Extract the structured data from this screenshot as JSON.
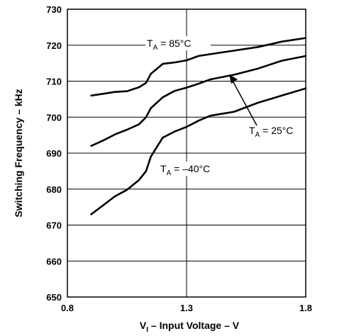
{
  "chart_data": {
    "type": "line",
    "xlabel": {
      "pre": "V",
      "sub": "I",
      "post": " – Input Voltage – V"
    },
    "ylabel": "Switching Frequency – kHz",
    "xlim": [
      0.8,
      1.8
    ],
    "ylim": [
      650,
      730
    ],
    "xticks": [
      "0.8",
      "1.3",
      "1.8"
    ],
    "xtick_values": [
      0.8,
      1.3,
      1.8
    ],
    "yticks": [
      "650",
      "660",
      "670",
      "680",
      "690",
      "700",
      "710",
      "720",
      "730"
    ],
    "ytick_values": [
      650,
      660,
      670,
      680,
      690,
      700,
      710,
      720,
      730
    ],
    "grid": true,
    "series": [
      {
        "name": "TA = 85°C",
        "x": [
          0.9,
          0.95,
          1.0,
          1.05,
          1.1,
          1.13,
          1.15,
          1.2,
          1.25,
          1.3,
          1.35,
          1.4,
          1.5,
          1.6,
          1.7,
          1.8
        ],
        "y": [
          706,
          706.5,
          707,
          707.2,
          708.3,
          709.5,
          712,
          714.8,
          715.2,
          715.8,
          717,
          717.5,
          718.5,
          719.5,
          721,
          722
        ]
      },
      {
        "name": "TA = 25°C",
        "x": [
          0.9,
          0.95,
          1.0,
          1.05,
          1.1,
          1.13,
          1.15,
          1.2,
          1.25,
          1.3,
          1.35,
          1.4,
          1.5,
          1.6,
          1.7,
          1.8
        ],
        "y": [
          692,
          693.5,
          695.2,
          696.5,
          698,
          700,
          702.5,
          705.5,
          707.3,
          708.2,
          709.3,
          710.5,
          711.8,
          713.5,
          715.7,
          717
        ]
      },
      {
        "name": "TA = –40°C",
        "x": [
          0.9,
          0.95,
          1.0,
          1.05,
          1.1,
          1.13,
          1.15,
          1.2,
          1.25,
          1.3,
          1.35,
          1.4,
          1.5,
          1.6,
          1.7,
          1.8
        ],
        "y": [
          673,
          675.5,
          678,
          679.8,
          682.5,
          685,
          689,
          694.3,
          696,
          697.3,
          699,
          700.4,
          701.5,
          704,
          706,
          708
        ]
      }
    ],
    "annotations": [
      {
        "main": "T",
        "sub": "A",
        "rest": " = 85°C"
      },
      {
        "main": "T",
        "sub": "A",
        "rest": " = 25°C"
      },
      {
        "main": "T",
        "sub": "A",
        "rest": " = –40°C"
      }
    ]
  }
}
